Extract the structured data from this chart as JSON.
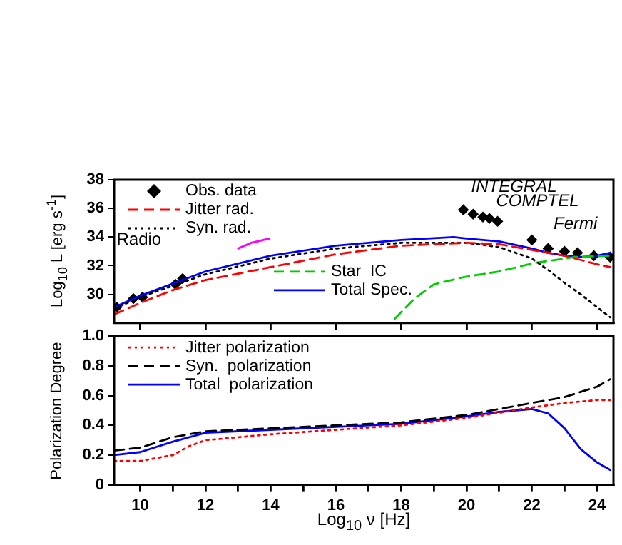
{
  "chart_data": [
    {
      "type": "line",
      "ylabel": "Log$_{10}$ L [erg s$^{-1}$]",
      "xlim": [
        9.2,
        24.5
      ],
      "ylim": [
        28,
        38
      ],
      "xticks": [
        10,
        12,
        14,
        16,
        18,
        20,
        22,
        24
      ],
      "yticks": [
        30,
        32,
        34,
        36,
        38
      ],
      "tick_labels": "y",
      "grid": false,
      "legend": "top left",
      "annotations": [
        "Radio",
        "INTEGRAL",
        "COMPTEL",
        "Fermi"
      ],
      "series": [
        {
          "name": "Obs. data",
          "type": "scatter",
          "marker": "diamond",
          "color": "#000000",
          "x": [
            9.28,
            9.79,
            10.07,
            11.08,
            11.3,
            19.9,
            20.2,
            20.5,
            20.7,
            20.95,
            22.0,
            22.5,
            23.0,
            23.4,
            23.9,
            24.4
          ],
          "values": [
            29.1,
            29.7,
            29.8,
            30.7,
            31.1,
            35.9,
            35.6,
            35.4,
            35.3,
            35.1,
            33.8,
            33.2,
            33.0,
            32.9,
            32.7,
            32.6
          ]
        },
        {
          "name": "Jitter rad.",
          "type": "line",
          "line_style": "dashed",
          "color": "#ff0000",
          "x": [
            9.2,
            10,
            11,
            12,
            14,
            16,
            18,
            20,
            21,
            22,
            23,
            24,
            24.4
          ],
          "values": [
            28.6,
            29.4,
            30.3,
            31.0,
            31.9,
            32.8,
            33.4,
            33.6,
            33.5,
            33.1,
            32.7,
            32.1,
            31.9
          ]
        },
        {
          "name": "Syn. rad.",
          "type": "line",
          "line_style": "dotted",
          "color": "#000000",
          "x": [
            9.2,
            10,
            12,
            14,
            16,
            18,
            20,
            21,
            22,
            22.5,
            23,
            23.5,
            24,
            24.4
          ],
          "values": [
            29.0,
            29.8,
            31.4,
            32.5,
            33.2,
            33.6,
            33.6,
            33.3,
            32.5,
            31.7,
            30.8,
            30.0,
            29.1,
            28.4
          ]
        },
        {
          "type": "line",
          "line_style": "solid",
          "color": "#ff00ff",
          "x": [
            13.0,
            13.4,
            13.96
          ],
          "values": [
            33.2,
            33.6,
            33.9
          ]
        },
        {
          "name": "Star  IC",
          "type": "line",
          "line_style": "dashed",
          "color": "#00cc00",
          "x": [
            17.8,
            18.4,
            19.0,
            19.9,
            21.0,
            22.1,
            23.3,
            24.4
          ],
          "values": [
            28.3,
            29.7,
            30.7,
            31.2,
            31.6,
            32.2,
            32.6,
            32.7
          ]
        },
        {
          "name": "Total Spec.",
          "type": "line",
          "line_style": "solid",
          "color": "#0000ff",
          "x": [
            9.2,
            10,
            12,
            14,
            16,
            18,
            19.6,
            20,
            21,
            22,
            22.5,
            23,
            23.5,
            24,
            24.4
          ],
          "values": [
            29.1,
            29.9,
            31.6,
            32.7,
            33.4,
            33.8,
            34.0,
            33.9,
            33.7,
            33.2,
            32.9,
            32.7,
            32.6,
            32.7,
            32.9
          ]
        }
      ]
    },
    {
      "type": "line",
      "xlabel": "Log$_{10}$ ν [Hz]",
      "ylabel": "Polarization Degree",
      "xlim": [
        9.2,
        24.5
      ],
      "ylim": [
        0,
        1
      ],
      "xticks": [
        10,
        {
          "value": 11,
          "label": null
        },
        12,
        {
          "value": 13,
          "label": null
        },
        14,
        {
          "value": 15,
          "label": null
        },
        16,
        {
          "value": 17,
          "label": null
        },
        18,
        {
          "value": 19,
          "label": null
        },
        20,
        {
          "value": 21,
          "label": null
        },
        22,
        {
          "value": 23,
          "label": null
        },
        24
      ],
      "yticks": [
        0,
        {
          "value": 0.2,
          "label": "0.2"
        },
        {
          "value": 0.4,
          "label": "0.4"
        },
        {
          "value": 0.6,
          "label": "0.6"
        },
        {
          "value": 0.8,
          "label": "0.8"
        },
        {
          "value": 1,
          "label": "1.0"
        }
      ],
      "grid": false,
      "legend": "top left",
      "series": [
        {
          "name": "Jitter polarization",
          "type": "line",
          "line_style": "dotted",
          "color": "#ff0000",
          "x": [
            9.2,
            10,
            11,
            11.5,
            12,
            14,
            16,
            18,
            20,
            22,
            23,
            24,
            24.4
          ],
          "values": [
            0.16,
            0.16,
            0.2,
            0.26,
            0.3,
            0.34,
            0.37,
            0.4,
            0.45,
            0.52,
            0.55,
            0.57,
            0.57
          ]
        },
        {
          "name": "Syn.  polarization",
          "type": "line",
          "line_style": "dashed",
          "color": "#000000",
          "x": [
            9.2,
            10,
            11,
            12,
            14,
            16,
            18,
            20,
            22,
            23,
            24,
            24.4
          ],
          "values": [
            0.23,
            0.25,
            0.32,
            0.36,
            0.38,
            0.4,
            0.42,
            0.47,
            0.55,
            0.59,
            0.66,
            0.71
          ]
        },
        {
          "name": "Total  polarization",
          "type": "line",
          "line_style": "solid",
          "color": "#0000ff",
          "x": [
            9.2,
            10,
            11,
            12,
            14,
            16,
            18,
            20,
            21,
            22,
            22.5,
            23,
            23.5,
            24,
            24.4
          ],
          "values": [
            0.2,
            0.22,
            0.29,
            0.35,
            0.37,
            0.39,
            0.41,
            0.46,
            0.49,
            0.51,
            0.48,
            0.38,
            0.24,
            0.15,
            0.1
          ]
        }
      ]
    }
  ]
}
